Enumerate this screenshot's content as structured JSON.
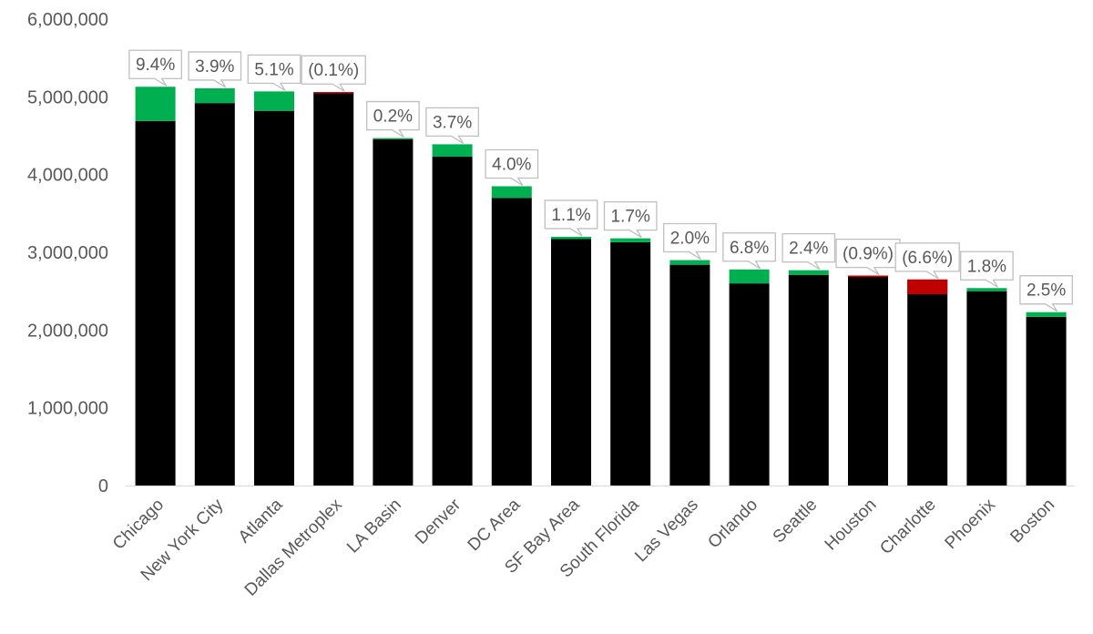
{
  "chart_data": {
    "type": "bar",
    "stacked": true,
    "title": "",
    "xlabel": "",
    "ylabel": "",
    "ylim": [
      0,
      6000000
    ],
    "yticks": [
      0,
      1000000,
      2000000,
      3000000,
      4000000,
      5000000,
      6000000
    ],
    "ytick_labels": [
      "0",
      "1,000,000",
      "2,000,000",
      "3,000,000",
      "4,000,000",
      "5,000,000",
      "6,000,000"
    ],
    "grid": false,
    "legend": "none",
    "categories": [
      "Chicago",
      "New York City",
      "Atlanta",
      "Dallas Metroplex",
      "LA Basin",
      "Denver",
      "DC Area",
      "SF Bay Area",
      "South Florida",
      "Las Vegas",
      "Orlando",
      "Seattle",
      "Houston",
      "Charlotte",
      "Phoenix",
      "Boston"
    ],
    "base_values": [
      4690000,
      4920000,
      4820000,
      5060000,
      4460000,
      4230000,
      3700000,
      3170000,
      3130000,
      2840000,
      2600000,
      2710000,
      2700000,
      2650000,
      2500000,
      2170000
    ],
    "change_values": [
      440000,
      190000,
      250000,
      -10000,
      10000,
      160000,
      150000,
      30000,
      50000,
      60000,
      180000,
      60000,
      -20000,
      -190000,
      40000,
      60000
    ],
    "change_labels": [
      "9.4%",
      "3.9%",
      "5.1%",
      "(0.1%)",
      "0.2%",
      "3.7%",
      "4.0%",
      "1.1%",
      "1.7%",
      "2.0%",
      "6.8%",
      "2.4%",
      "(0.9%)",
      "(6.6%)",
      "1.8%",
      "2.5%"
    ],
    "colors": {
      "base": "#000000",
      "increase": "#00b050",
      "decrease": "#c00000",
      "axis": "#d9d9d9",
      "text": "#595959",
      "callout_border": "#bfbfbf"
    }
  }
}
